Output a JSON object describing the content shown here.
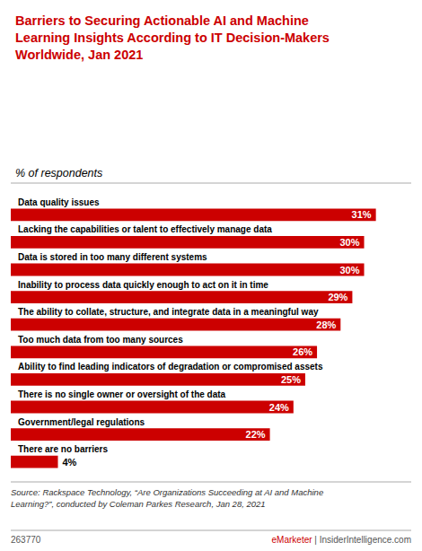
{
  "chart_data": {
    "type": "bar",
    "orientation": "horizontal",
    "title": "Barriers to Securing Actionable AI and Machine\nLearning Insights According to IT Decision-Makers\nWorldwide, Jan 2021",
    "subtitle": "% of respondents",
    "categories": [
      "Data quality issues",
      "Lacking the capabilities or talent to effectively manage data",
      "Data is stored in too many different systems",
      "Inability to process data quickly enough to act on it in time",
      "The ability to collate, structure, and integrate data in a meaningful way",
      "Too much data from too many sources",
      "Ability to find leading indicators of degradation or compromised assets",
      "There is no single owner or oversight of the data",
      "Government/legal regulations",
      "There are no barriers"
    ],
    "values": [
      31,
      30,
      30,
      29,
      28,
      26,
      25,
      24,
      22,
      4
    ],
    "value_labels": [
      "31%",
      "30%",
      "30%",
      "29%",
      "28%",
      "26%",
      "25%",
      "24%",
      "22%",
      "4%"
    ],
    "data_labels": true,
    "color": "#cc0000",
    "xlim": [
      0,
      34
    ],
    "grid": false,
    "tick_labels": false,
    "annotations": [
      "Source: Rackspace Technology, “Are Organizations Succeeding at AI and Machine\nLearning?”, conducted by Coleman Parkes Research, Jan 28, 2021",
      "263770",
      "eMarketer",
      "|",
      "InsiderIntelligence.com"
    ]
  }
}
